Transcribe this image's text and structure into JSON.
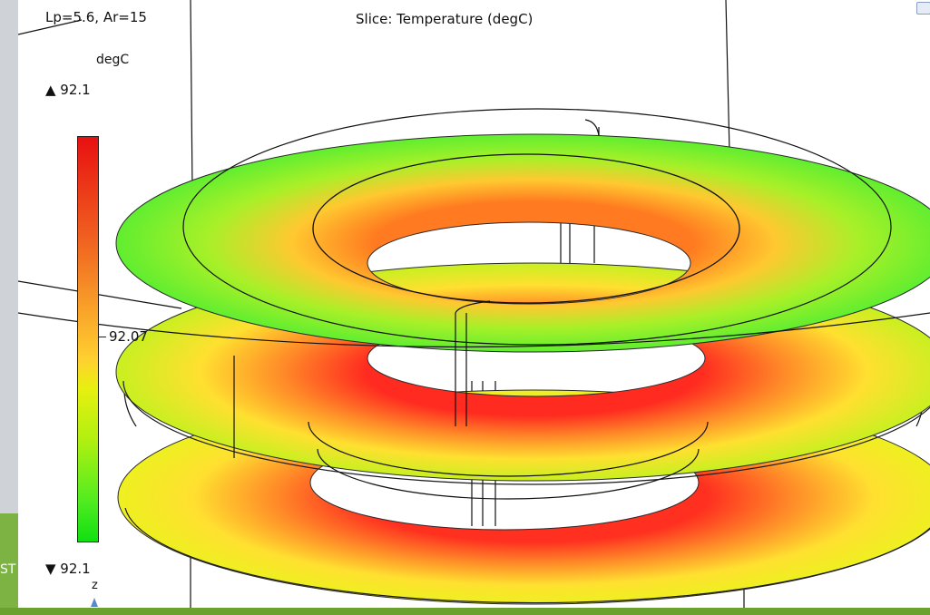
{
  "plot": {
    "parameter_label": "Lp=5.6, Ar=15",
    "title": "Slice: Temperature (degC)",
    "colorbar": {
      "unit": "degC",
      "max_label": "▲ 92.1",
      "mid_label": "92.07",
      "min_label": "▼ 92.1",
      "colormap": "rainbow-light",
      "colors": [
        "#e81010",
        "#f06020",
        "#ffd030",
        "#e8f010",
        "#b0f010",
        "#50ec20",
        "#10e010"
      ]
    },
    "axis_label": "z",
    "slices": [
      {
        "name": "top-slice",
        "outer_color": "#70f030",
        "inner_color": "#ff8030"
      },
      {
        "name": "middle-slice",
        "outer_color": "#d8f020",
        "inner_color": "#ff3a20"
      },
      {
        "name": "bottom-slice",
        "outer_color": "#f0f020",
        "inner_color": "#ff3a20"
      }
    ]
  },
  "left_panel": {
    "tag": "ST",
    "accent": "#7cb342"
  }
}
